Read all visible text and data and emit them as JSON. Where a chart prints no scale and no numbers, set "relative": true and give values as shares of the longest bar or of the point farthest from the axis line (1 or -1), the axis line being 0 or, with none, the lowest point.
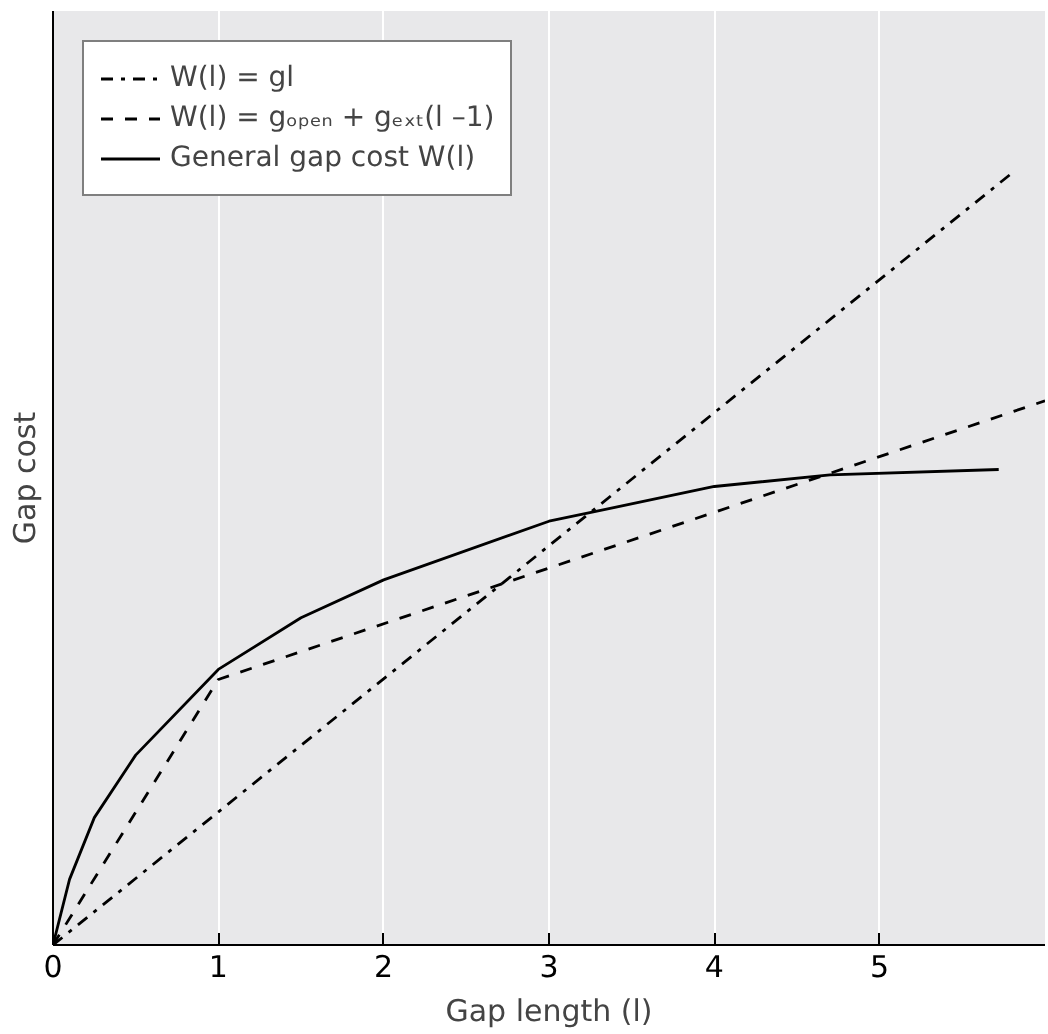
{
  "chart_data": {
    "type": "line",
    "relative": true,
    "xlabel": "Gap length (l)",
    "ylabel": "Gap cost",
    "xlim": [
      0,
      6
    ],
    "xticks": [
      0,
      1,
      2,
      3,
      4,
      5
    ],
    "grid": "x",
    "legend": "top left",
    "marker": "none",
    "series": [
      {
        "name": "W(l) = gl",
        "color": "#000000",
        "line_style": "dashdot",
        "x": [
          0,
          5.8
        ],
        "values": [
          0,
          1
        ]
      },
      {
        "name": "W(l) = gₒₚₑₙ + gₑₓₜ(l –1)",
        "color": "#000000",
        "line_style": "dashed",
        "x": [
          0,
          1,
          6
        ],
        "values": [
          0,
          0.344,
          0.705
        ]
      },
      {
        "name": "General gap cost W(l)",
        "color": "#000000",
        "line_style": "solid",
        "x": [
          0,
          0.1,
          0.25,
          0.5,
          1,
          1.5,
          2,
          3,
          4,
          4.7,
          5.72
        ],
        "values": [
          0,
          0.085,
          0.165,
          0.246,
          0.357,
          0.424,
          0.473,
          0.549,
          0.594,
          0.609,
          0.616
        ]
      }
    ]
  }
}
